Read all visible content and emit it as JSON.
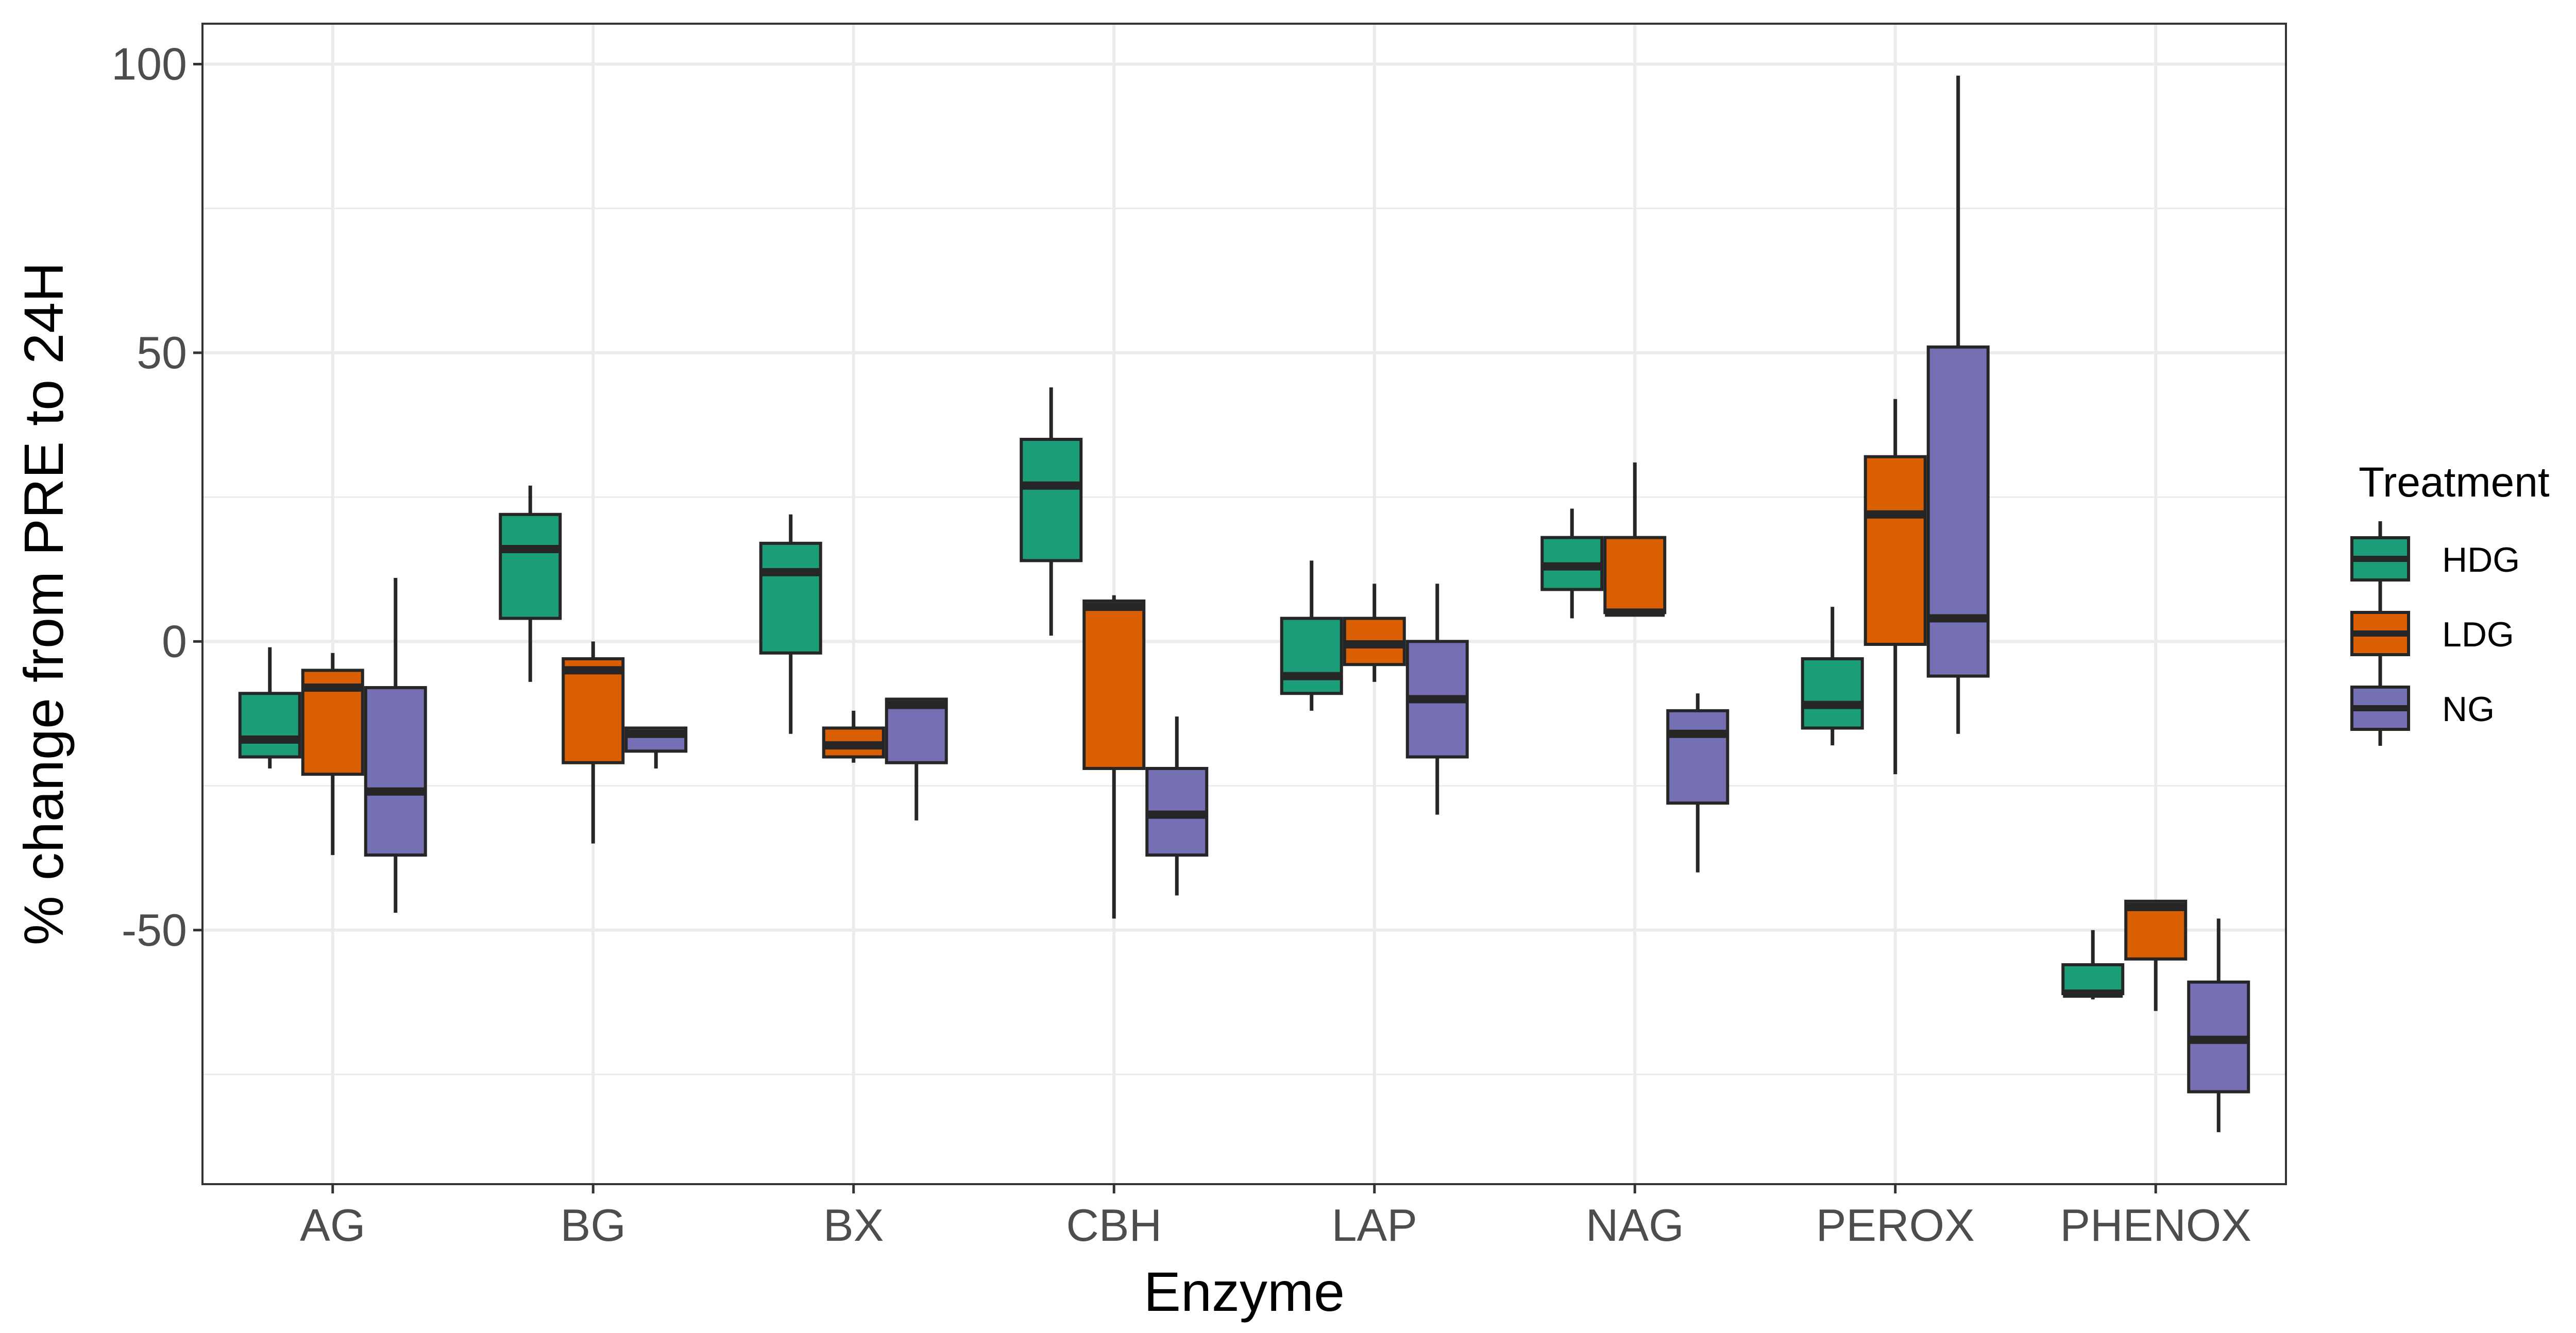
{
  "chart_data": {
    "type": "boxplot",
    "xlabel": "Enzyme",
    "ylabel": "% change from PRE to 24H",
    "categories": [
      "AG",
      "BG",
      "BX",
      "CBH",
      "LAP",
      "NAG",
      "PEROX",
      "PHENOX"
    ],
    "yticks": [
      -50,
      0,
      50,
      100
    ],
    "ylim": [
      -94,
      107
    ],
    "grid": true,
    "legend": {
      "title": "Treatment",
      "position": "right",
      "entries": [
        "HDG",
        "LDG",
        "NG"
      ]
    },
    "colors": {
      "HDG": "#1b9e77",
      "LDG": "#d95f02",
      "NG": "#7570b3",
      "outline": "#262626",
      "grid": "#ebebeb",
      "panel_border": "#333333"
    },
    "series": [
      {
        "name": "HDG",
        "boxes": [
          {
            "category": "AG",
            "min": -22,
            "q1": -20,
            "median": -17,
            "q3": -9,
            "max": -1
          },
          {
            "category": "BG",
            "min": -7,
            "q1": 4,
            "median": 16,
            "q3": 22,
            "max": 27
          },
          {
            "category": "BX",
            "min": -16,
            "q1": -2,
            "median": 12,
            "q3": 17,
            "max": 22
          },
          {
            "category": "CBH",
            "min": 1,
            "q1": 14,
            "median": 27,
            "q3": 35,
            "max": 44
          },
          {
            "category": "LAP",
            "min": -12,
            "q1": -9,
            "median": -6,
            "q3": 4,
            "max": 14
          },
          {
            "category": "NAG",
            "min": 4,
            "q1": 9,
            "median": 13,
            "q3": 18,
            "max": 23
          },
          {
            "category": "PEROX",
            "min": -18,
            "q1": -15,
            "median": -11,
            "q3": -3,
            "max": 6
          },
          {
            "category": "PHENOX",
            "min": -62,
            "q1": -61,
            "median": -61,
            "q3": -56,
            "max": -50
          }
        ]
      },
      {
        "name": "LDG",
        "boxes": [
          {
            "category": "AG",
            "min": -37,
            "q1": -23,
            "median": -8,
            "q3": -5,
            "max": -2
          },
          {
            "category": "BG",
            "min": -35,
            "q1": -21,
            "median": -5,
            "q3": -3,
            "max": 0
          },
          {
            "category": "BX",
            "min": -21,
            "q1": -20,
            "median": -18,
            "q3": -15,
            "max": -12
          },
          {
            "category": "CBH",
            "min": -48,
            "q1": -22,
            "median": 6,
            "q3": 7,
            "max": 8
          },
          {
            "category": "LAP",
            "min": -7,
            "q1": -4,
            "median": -0.5,
            "q3": 4,
            "max": 10
          },
          {
            "category": "NAG",
            "min": 5,
            "q1": 5,
            "median": 5,
            "q3": 18,
            "max": 31
          },
          {
            "category": "PEROX",
            "min": -23,
            "q1": -0.5,
            "median": 22,
            "q3": 32,
            "max": 42
          },
          {
            "category": "PHENOX",
            "min": -64,
            "q1": -55,
            "median": -46,
            "q3": -45,
            "max": -45
          }
        ]
      },
      {
        "name": "NG",
        "boxes": [
          {
            "category": "AG",
            "min": -47,
            "q1": -37,
            "median": -26,
            "q3": -8,
            "max": 11
          },
          {
            "category": "BG",
            "min": -22,
            "q1": -19,
            "median": -16,
            "q3": -15,
            "max": -15
          },
          {
            "category": "BX",
            "min": -31,
            "q1": -21,
            "median": -11,
            "q3": -10,
            "max": -10
          },
          {
            "category": "CBH",
            "min": -44,
            "q1": -37,
            "median": -30,
            "q3": -22,
            "max": -13
          },
          {
            "category": "LAP",
            "min": -30,
            "q1": -20,
            "median": -10,
            "q3": 0,
            "max": 10
          },
          {
            "category": "NAG",
            "min": -40,
            "q1": -28,
            "median": -16,
            "q3": -12,
            "max": -9
          },
          {
            "category": "PEROX",
            "min": -16,
            "q1": -6,
            "median": 4,
            "q3": 51,
            "max": 98
          },
          {
            "category": "PHENOX",
            "min": -85,
            "q1": -78,
            "median": -69,
            "q3": -59,
            "max": -48
          }
        ]
      }
    ]
  }
}
